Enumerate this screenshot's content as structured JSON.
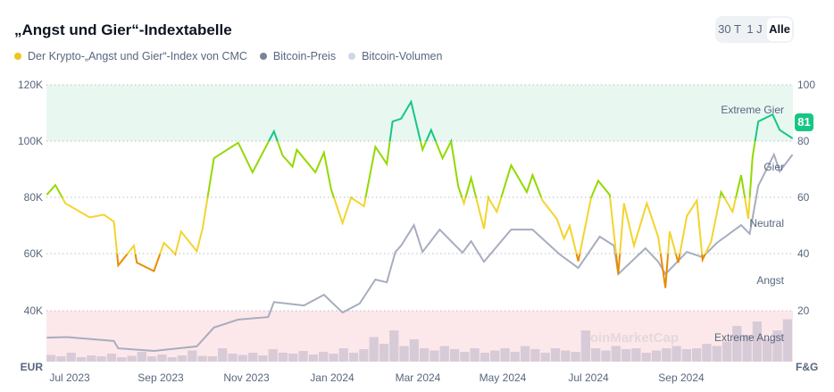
{
  "header": {
    "title": "„Angst und Gier“-Indextabelle",
    "toggles": [
      "30 T",
      "1 J",
      "Alle"
    ],
    "active_toggle": "Alle"
  },
  "legend": [
    {
      "label": "Der Krypto-„Angst und Gier“-Index von CMC",
      "color": "#f0c419"
    },
    {
      "label": "Bitcoin-Preis",
      "color": "#7c8397"
    },
    {
      "label": "Bitcoin-Volumen",
      "color": "#cfd6e4"
    }
  ],
  "current_badge": "81",
  "watermark": "CoinMarketCap",
  "chart_data": {
    "type": "line",
    "left_axis": {
      "unit": "EUR",
      "ticks": [
        "120K",
        "100K",
        "80K",
        "60K",
        "40K"
      ],
      "range": [
        20,
        120
      ]
    },
    "right_axis": {
      "unit": "F&G",
      "ticks": [
        "100",
        "80",
        "60",
        "40",
        "20"
      ],
      "range": [
        0,
        100
      ]
    },
    "x_ticks": [
      "Jul 2023",
      "Sep 2023",
      "Nov 2023",
      "Jan 2024",
      "Mar 2024",
      "May 2024",
      "Jul 2024",
      "Sep 2024"
    ],
    "zones": [
      "Extreme Gier",
      "Gier",
      "Neutral",
      "Angst",
      "Extreme Angst"
    ],
    "zone_colors": {
      "extreme_greed": "#16c784",
      "greed": "#93d900",
      "neutral": "#f3d42f",
      "fear": "#ea8c00",
      "band_greed": "#e8f8f1",
      "band_fear": "#fce8ea"
    },
    "grid": true,
    "fear_greed": [
      [
        "2023-06-15",
        61
      ],
      [
        "2023-06-21",
        64.5
      ],
      [
        "2023-06-28",
        58
      ],
      [
        "2023-07-15",
        53
      ],
      [
        "2023-07-25",
        54
      ],
      [
        "2023-08-01",
        51.5
      ],
      [
        "2023-08-04",
        36
      ],
      [
        "2023-08-15",
        43
      ],
      [
        "2023-08-17",
        37
      ],
      [
        "2023-08-29",
        34
      ],
      [
        "2023-09-05",
        44
      ],
      [
        "2023-09-13",
        40
      ],
      [
        "2023-09-17",
        48
      ],
      [
        "2023-09-28",
        41
      ],
      [
        "2023-10-02",
        49
      ],
      [
        "2023-10-10",
        74
      ],
      [
        "2023-10-27",
        79.5
      ],
      [
        "2023-11-06",
        69
      ],
      [
        "2023-11-21",
        83.5
      ],
      [
        "2023-11-27",
        75
      ],
      [
        "2023-12-04",
        71
      ],
      [
        "2023-12-07",
        77
      ],
      [
        "2023-12-20",
        69
      ],
      [
        "2023-12-26",
        76
      ],
      [
        "2023-12-31",
        63
      ],
      [
        "2024-01-08",
        51
      ],
      [
        "2024-01-14",
        60
      ],
      [
        "2024-01-23",
        57
      ],
      [
        "2024-01-31",
        78
      ],
      [
        "2024-02-08",
        72
      ],
      [
        "2024-02-12",
        87
      ],
      [
        "2024-02-18",
        88
      ],
      [
        "2024-02-25",
        94
      ],
      [
        "2024-03-04",
        77
      ],
      [
        "2024-03-10",
        84
      ],
      [
        "2024-03-18",
        74
      ],
      [
        "2024-03-24",
        80
      ],
      [
        "2024-03-29",
        64
      ],
      [
        "2024-04-02",
        58
      ],
      [
        "2024-04-07",
        67
      ],
      [
        "2024-04-16",
        49
      ],
      [
        "2024-04-19",
        60
      ],
      [
        "2024-04-25",
        55
      ],
      [
        "2024-05-05",
        71.5
      ],
      [
        "2024-05-16",
        62
      ],
      [
        "2024-05-20",
        68
      ],
      [
        "2024-05-27",
        59
      ],
      [
        "2024-06-06",
        52.5
      ],
      [
        "2024-06-11",
        45.5
      ],
      [
        "2024-06-15",
        50
      ],
      [
        "2024-06-21",
        37.5
      ],
      [
        "2024-06-30",
        60
      ],
      [
        "2024-07-05",
        66
      ],
      [
        "2024-07-13",
        61
      ],
      [
        "2024-07-19",
        33
      ],
      [
        "2024-07-23",
        58
      ],
      [
        "2024-07-30",
        43
      ],
      [
        "2024-08-08",
        58
      ],
      [
        "2024-08-16",
        46
      ],
      [
        "2024-08-21",
        28
      ],
      [
        "2024-08-24",
        48
      ],
      [
        "2024-08-30",
        37
      ],
      [
        "2024-09-05",
        53.5
      ],
      [
        "2024-09-12",
        59
      ],
      [
        "2024-09-16",
        38
      ],
      [
        "2024-09-22",
        44.5
      ],
      [
        "2024-09-29",
        62
      ],
      [
        "2024-10-07",
        55
      ],
      [
        "2024-10-13",
        68
      ],
      [
        "2024-10-18",
        52.5
      ],
      [
        "2024-10-21",
        74.5
      ],
      [
        "2024-10-25",
        87
      ],
      [
        "2024-11-04",
        89.5
      ],
      [
        "2024-11-09",
        84
      ],
      [
        "2024-11-18",
        81
      ]
    ],
    "btc_price_k_eur": [
      [
        "2023-06-15",
        30.4
      ],
      [
        "2023-06-29",
        30.6
      ],
      [
        "2023-08-01",
        29.2
      ],
      [
        "2023-08-04",
        26.6
      ],
      [
        "2023-08-29",
        25.7
      ],
      [
        "2023-09-28",
        27.3
      ],
      [
        "2023-10-10",
        34
      ],
      [
        "2023-10-27",
        36.8
      ],
      [
        "2023-11-17",
        37.7
      ],
      [
        "2023-11-21",
        43
      ],
      [
        "2023-12-12",
        41.8
      ],
      [
        "2023-12-26",
        45.6
      ],
      [
        "2024-01-08",
        39.3
      ],
      [
        "2024-01-20",
        42.5
      ],
      [
        "2024-01-31",
        51
      ],
      [
        "2024-02-08",
        50
      ],
      [
        "2024-02-14",
        60.8
      ],
      [
        "2024-02-18",
        63
      ],
      [
        "2024-02-27",
        70.3
      ],
      [
        "2024-03-04",
        60.8
      ],
      [
        "2024-03-16",
        68.7
      ],
      [
        "2024-04-01",
        60.5
      ],
      [
        "2024-04-07",
        64.6
      ],
      [
        "2024-04-16",
        57.3
      ],
      [
        "2024-05-05",
        68.7
      ],
      [
        "2024-05-20",
        68.7
      ],
      [
        "2024-06-08",
        59.9
      ],
      [
        "2024-06-21",
        55.1
      ],
      [
        "2024-07-06",
        66.2
      ],
      [
        "2024-07-16",
        63
      ],
      [
        "2024-07-19",
        52.9
      ],
      [
        "2024-08-07",
        62.1
      ],
      [
        "2024-08-16",
        57.3
      ],
      [
        "2024-08-21",
        52.9
      ],
      [
        "2024-09-05",
        60.8
      ],
      [
        "2024-09-16",
        58.9
      ],
      [
        "2024-09-26",
        64
      ],
      [
        "2024-10-13",
        70.3
      ],
      [
        "2024-10-19",
        67.2
      ],
      [
        "2024-10-25",
        84.2
      ],
      [
        "2024-11-05",
        95.3
      ],
      [
        "2024-11-09",
        89.3
      ],
      [
        "2024-11-18",
        95.3
      ]
    ],
    "btc_volume_relative": [
      0.15,
      0.12,
      0.2,
      0.1,
      0.14,
      0.12,
      0.18,
      0.1,
      0.13,
      0.22,
      0.12,
      0.16,
      0.1,
      0.14,
      0.25,
      0.13,
      0.12,
      0.3,
      0.18,
      0.15,
      0.2,
      0.14,
      0.28,
      0.2,
      0.18,
      0.24,
      0.16,
      0.22,
      0.18,
      0.3,
      0.2,
      0.28,
      0.55,
      0.4,
      0.7,
      0.35,
      0.5,
      0.3,
      0.25,
      0.35,
      0.28,
      0.22,
      0.3,
      0.2,
      0.25,
      0.3,
      0.22,
      0.35,
      0.28,
      0.2,
      0.3,
      0.25,
      0.22,
      0.7,
      0.3,
      0.25,
      0.35,
      0.28,
      0.3,
      0.2,
      0.25,
      0.3,
      0.35,
      0.28,
      0.3,
      0.4,
      0.35,
      0.45,
      0.8,
      0.6,
      0.9,
      0.5,
      0.7,
      0.95
    ]
  }
}
